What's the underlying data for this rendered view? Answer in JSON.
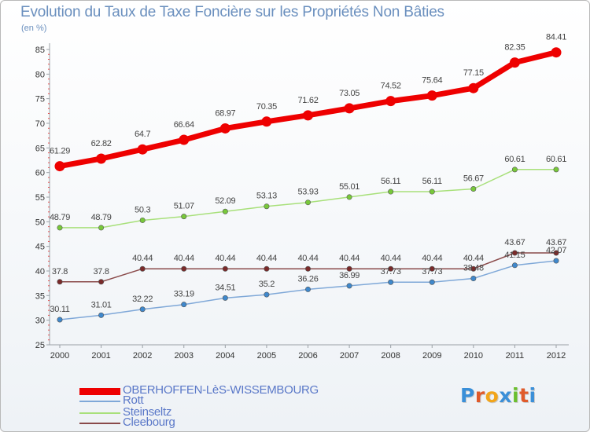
{
  "title": "Evolution du Taux de Taxe Foncière sur les Propriétés Non Bâties",
  "unit_label": "(en %)",
  "logo_text": "Proxiti",
  "logo_colors": [
    "#3a8fd8",
    "#e05a2a",
    "#f2a51a",
    "#3a8fd8",
    "#6abf2e",
    "#e05a2a",
    "#3a8fd8"
  ],
  "chart_data": {
    "type": "line",
    "title": "Evolution du Taux de Taxe Foncière sur les Propriétés Non Bâties",
    "ylabel": "(en %)",
    "xlabel": "",
    "ylim": [
      25,
      85
    ],
    "yticks": [
      25,
      30,
      35,
      40,
      45,
      50,
      55,
      60,
      65,
      70,
      75,
      80,
      85
    ],
    "x": [
      "2000",
      "2001",
      "2002",
      "2003",
      "2004",
      "2005",
      "2006",
      "2007",
      "2008",
      "2009",
      "2010",
      "2011",
      "2012"
    ],
    "grid": false,
    "legend_position": "bottom-left",
    "series": [
      {
        "name": "OBERHOFFEN-LèS-WISSEMBOURG",
        "color": "#ee0000",
        "marker_color": "#ee0000",
        "values": [
          61.29,
          62.82,
          64.7,
          66.64,
          68.97,
          70.35,
          71.62,
          73.05,
          74.52,
          75.64,
          77.15,
          82.35,
          84.41
        ],
        "labels": [
          "61.29",
          "62.82",
          "64.7",
          "66.64",
          "68.97",
          "70.35",
          "71.62",
          "73.05",
          "74.52",
          "75.64",
          "77.15",
          "82.35",
          "84.41"
        ]
      },
      {
        "name": "Rott",
        "color": "#7fa8d8",
        "marker_color": "#3f88cc",
        "values": [
          30.11,
          31.01,
          32.22,
          33.19,
          34.51,
          35.2,
          36.26,
          36.99,
          37.73,
          37.73,
          38.48,
          41.15,
          42.07
        ],
        "labels": [
          "30.11",
          "31.01",
          "32.22",
          "33.19",
          "34.51",
          "35.2",
          "36.26",
          "36.99",
          "37.73",
          "37.73",
          "38.48",
          "41.15",
          "42.07"
        ]
      },
      {
        "name": "Steinseltz",
        "color": "#a8e07a",
        "marker_color": "#78c83a",
        "values": [
          48.79,
          48.79,
          50.3,
          51.07,
          52.09,
          53.13,
          53.93,
          55.01,
          56.11,
          56.11,
          56.67,
          60.61,
          60.61
        ],
        "labels": [
          "48.79",
          "48.79",
          "50.3",
          "51.07",
          "52.09",
          "53.13",
          "53.93",
          "55.01",
          "56.11",
          "56.11",
          "56.67",
          "60.61",
          "60.61"
        ]
      },
      {
        "name": "Cleebourg",
        "color": "#8a4a4a",
        "marker_color": "#7a2a2a",
        "values": [
          37.8,
          37.8,
          40.44,
          40.44,
          40.44,
          40.44,
          40.44,
          40.44,
          40.44,
          40.44,
          40.44,
          43.67,
          43.67
        ],
        "labels": [
          "37.8",
          "37.8",
          "40.44",
          "40.44",
          "40.44",
          "40.44",
          "40.44",
          "40.44",
          "40.44",
          "40.44",
          "40.44",
          "43.67",
          "43.67"
        ]
      }
    ]
  }
}
